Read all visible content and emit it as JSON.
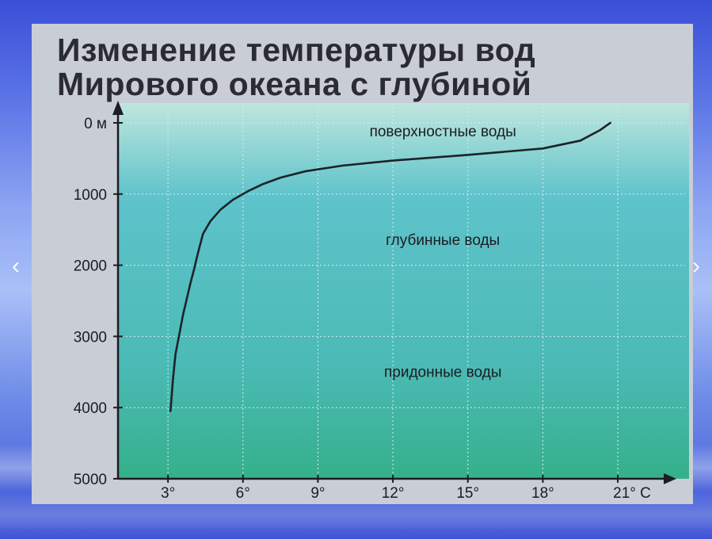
{
  "chart_data": {
    "type": "line",
    "title_lines": [
      "Изменение температуры вод",
      "Мирового океана с глубиной"
    ],
    "xlabel": "",
    "ylabel": "",
    "x_ticks": [
      "3°",
      "6°",
      "9°",
      "12°",
      "15°",
      "18°",
      "21° C"
    ],
    "x_tick_values": [
      3,
      6,
      9,
      12,
      15,
      18,
      21
    ],
    "y_ticks": [
      "0 м",
      "1000",
      "2000",
      "3000",
      "4000",
      "5000"
    ],
    "y_tick_values": [
      0,
      1000,
      2000,
      3000,
      4000,
      5000
    ],
    "xlim": [
      1,
      22.9
    ],
    "ylim": [
      0,
      5000
    ],
    "y_inverted": true,
    "grid": true,
    "zones": [
      {
        "label": "поверхностные воды",
        "x": 14,
        "y": 120
      },
      {
        "label": "глубинные воды",
        "x": 14,
        "y": 1650
      },
      {
        "label": "придонные воды",
        "x": 14,
        "y": 3500
      }
    ],
    "series": [
      {
        "x": [
          20.7,
          20.3,
          19.5,
          18,
          15,
          12,
          10,
          8.5,
          7.5,
          6.8,
          6.2,
          5.6,
          5.1,
          4.7,
          4.4,
          4.25,
          4.15,
          4.05,
          3.9,
          3.6,
          3.3,
          3.2,
          3.1
        ],
        "y": [
          0,
          100,
          250,
          360,
          450,
          530,
          600,
          680,
          770,
          860,
          960,
          1080,
          1220,
          1380,
          1560,
          1760,
          1900,
          2050,
          2250,
          2700,
          3250,
          3600,
          4050
        ]
      }
    ]
  },
  "colors": {
    "plot_top": "#bfe6dd",
    "plot_mid": "#5ec3cb",
    "plot_bottom": "#35b08a",
    "line": "#1c2328",
    "grid": "#d8eef0",
    "axis": "#1c1c22"
  },
  "navigation": {
    "prev_icon": "chevron-left-icon",
    "next_icon": "chevron-right-icon"
  }
}
